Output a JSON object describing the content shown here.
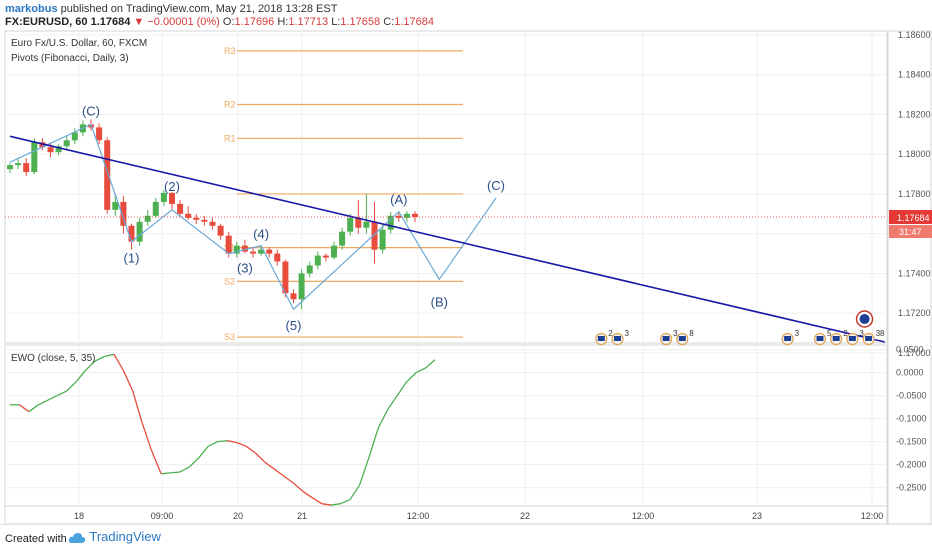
{
  "header": {
    "author": "markobus",
    "published_text": "published on TradingView.com, May 21, 2018 13:28 EST",
    "symbol_line": "FX:EURUSD, 60",
    "last_price": "1.17684",
    "change": "−0.00001 (0%)",
    "open_label": "O:",
    "open_value": "1.17696",
    "high_label": "H:",
    "high_value": "1.17713",
    "low_label": "L:",
    "low_value": "1.17658",
    "close_label": "C:",
    "close_value": "1.17684"
  },
  "footer": {
    "created_with": "Created with",
    "brand": "TradingView"
  },
  "colors": {
    "up": "#4caf50",
    "down": "#e74c3c",
    "pivot": "#f0a860",
    "trend": "#1a1aa8",
    "wave": "#6aa9d8",
    "ewo_up": "#4caf50",
    "ewo_down": "#e74c3c",
    "price_marker": "#e53935"
  },
  "chart_data": [
    {
      "type": "candlestick",
      "title": "Euro Fx/U.S. Dollar, 60, FXCM",
      "indicator_label": "Pivots (Fibonacci, Daily, 3)",
      "ylim": [
        1.1705,
        1.1862
      ],
      "y_ticks": [
        "1.18600",
        "1.18400",
        "1.18200",
        "1.18000",
        "1.17800",
        "1.17600",
        "1.17400",
        "1.17200",
        "1.17000"
      ],
      "x_ticks": [
        "18",
        "09:00",
        "20",
        "21",
        "12:00",
        "22",
        "12:00",
        "23",
        "12:00"
      ],
      "candles": [
        {
          "o": 1.17925,
          "h": 1.17955,
          "l": 1.17905,
          "c": 1.17945
        },
        {
          "o": 1.17945,
          "h": 1.17975,
          "l": 1.17925,
          "c": 1.17955
        },
        {
          "o": 1.17955,
          "h": 1.1798,
          "l": 1.1789,
          "c": 1.1791
        },
        {
          "o": 1.1791,
          "h": 1.1808,
          "l": 1.179,
          "c": 1.1806
        },
        {
          "o": 1.1806,
          "h": 1.1808,
          "l": 1.1802,
          "c": 1.18035
        },
        {
          "o": 1.18035,
          "h": 1.1806,
          "l": 1.17985,
          "c": 1.1801
        },
        {
          "o": 1.1801,
          "h": 1.1805,
          "l": 1.17995,
          "c": 1.1804
        },
        {
          "o": 1.1804,
          "h": 1.1809,
          "l": 1.1802,
          "c": 1.1807
        },
        {
          "o": 1.1807,
          "h": 1.1813,
          "l": 1.1805,
          "c": 1.1811
        },
        {
          "o": 1.1811,
          "h": 1.1817,
          "l": 1.1809,
          "c": 1.1815
        },
        {
          "o": 1.1815,
          "h": 1.18175,
          "l": 1.1812,
          "c": 1.18135
        },
        {
          "o": 1.18135,
          "h": 1.18155,
          "l": 1.1805,
          "c": 1.1807
        },
        {
          "o": 1.1807,
          "h": 1.18085,
          "l": 1.177,
          "c": 1.1772
        },
        {
          "o": 1.1772,
          "h": 1.178,
          "l": 1.1769,
          "c": 1.1776
        },
        {
          "o": 1.1776,
          "h": 1.1779,
          "l": 1.176,
          "c": 1.1764
        },
        {
          "o": 1.1764,
          "h": 1.1765,
          "l": 1.1752,
          "c": 1.1756
        },
        {
          "o": 1.1756,
          "h": 1.1768,
          "l": 1.1754,
          "c": 1.1766
        },
        {
          "o": 1.1766,
          "h": 1.1772,
          "l": 1.1764,
          "c": 1.1769
        },
        {
          "o": 1.1769,
          "h": 1.1778,
          "l": 1.1768,
          "c": 1.1776
        },
        {
          "o": 1.1776,
          "h": 1.1782,
          "l": 1.1774,
          "c": 1.17805
        },
        {
          "o": 1.17805,
          "h": 1.1781,
          "l": 1.1772,
          "c": 1.1775
        },
        {
          "o": 1.1775,
          "h": 1.1777,
          "l": 1.1769,
          "c": 1.177
        },
        {
          "o": 1.177,
          "h": 1.1774,
          "l": 1.1767,
          "c": 1.1768
        },
        {
          "o": 1.1768,
          "h": 1.177,
          "l": 1.1765,
          "c": 1.1767
        },
        {
          "o": 1.1767,
          "h": 1.1769,
          "l": 1.1764,
          "c": 1.1766
        },
        {
          "o": 1.1766,
          "h": 1.1768,
          "l": 1.1762,
          "c": 1.1764
        },
        {
          "o": 1.1764,
          "h": 1.1765,
          "l": 1.1757,
          "c": 1.1759
        },
        {
          "o": 1.1759,
          "h": 1.1761,
          "l": 1.1748,
          "c": 1.175
        },
        {
          "o": 1.175,
          "h": 1.1756,
          "l": 1.1748,
          "c": 1.1754
        },
        {
          "o": 1.1754,
          "h": 1.1757,
          "l": 1.175,
          "c": 1.1751
        },
        {
          "o": 1.1751,
          "h": 1.1753,
          "l": 1.1748,
          "c": 1.175
        },
        {
          "o": 1.175,
          "h": 1.1754,
          "l": 1.1749,
          "c": 1.1752
        },
        {
          "o": 1.1752,
          "h": 1.1753,
          "l": 1.1748,
          "c": 1.175
        },
        {
          "o": 1.175,
          "h": 1.1752,
          "l": 1.1744,
          "c": 1.1746
        },
        {
          "o": 1.1746,
          "h": 1.1747,
          "l": 1.1728,
          "c": 1.173
        },
        {
          "o": 1.173,
          "h": 1.1732,
          "l": 1.1725,
          "c": 1.1727
        },
        {
          "o": 1.1727,
          "h": 1.1742,
          "l": 1.1722,
          "c": 1.174
        },
        {
          "o": 1.174,
          "h": 1.1746,
          "l": 1.1738,
          "c": 1.1744
        },
        {
          "o": 1.1744,
          "h": 1.1751,
          "l": 1.1742,
          "c": 1.1749
        },
        {
          "o": 1.1749,
          "h": 1.175,
          "l": 1.1746,
          "c": 1.1748
        },
        {
          "o": 1.1748,
          "h": 1.1756,
          "l": 1.1747,
          "c": 1.1754
        },
        {
          "o": 1.1754,
          "h": 1.1763,
          "l": 1.1752,
          "c": 1.1761
        },
        {
          "o": 1.1761,
          "h": 1.177,
          "l": 1.1759,
          "c": 1.1768
        },
        {
          "o": 1.1768,
          "h": 1.1777,
          "l": 1.176,
          "c": 1.1763
        },
        {
          "o": 1.1763,
          "h": 1.178,
          "l": 1.176,
          "c": 1.1766
        },
        {
          "o": 1.1766,
          "h": 1.1776,
          "l": 1.1745,
          "c": 1.1752
        },
        {
          "o": 1.1752,
          "h": 1.1765,
          "l": 1.175,
          "c": 1.1762
        },
        {
          "o": 1.1762,
          "h": 1.1771,
          "l": 1.176,
          "c": 1.1769
        },
        {
          "o": 1.1769,
          "h": 1.1771,
          "l": 1.1766,
          "c": 1.1768
        },
        {
          "o": 1.1768,
          "h": 1.17713,
          "l": 1.17658,
          "c": 1.177
        },
        {
          "o": 1.177,
          "h": 1.17713,
          "l": 1.17658,
          "c": 1.17684
        }
      ],
      "pivots": [
        {
          "label": "R3",
          "value": 1.1852
        },
        {
          "label": "R2",
          "value": 1.1825
        },
        {
          "label": "R1",
          "value": 1.1808
        },
        {
          "label": "",
          "value": 1.178
        },
        {
          "label": "S1",
          "value": 1.1753
        },
        {
          "label": "S2",
          "value": 1.1736
        },
        {
          "label": "S3",
          "value": 1.1708
        }
      ],
      "wave_labels": [
        {
          "text": "(C)",
          "bar": 10,
          "price": 1.18215
        },
        {
          "text": "(1)",
          "bar": 15,
          "price": 1.17475
        },
        {
          "text": "(2)",
          "bar": 20,
          "price": 1.17835
        },
        {
          "text": "(3)",
          "bar": 29,
          "price": 1.17425
        },
        {
          "text": "(4)",
          "bar": 31,
          "price": 1.17595
        },
        {
          "text": "(5)",
          "bar": 35,
          "price": 1.17135
        },
        {
          "text": "(A)",
          "bar": 48,
          "price": 1.1777
        },
        {
          "text": "(B)",
          "bar": 53,
          "price": 1.17255
        },
        {
          "text": "(C)",
          "bar": 60,
          "price": 1.1784
        }
      ],
      "wave_path": [
        {
          "bar": 0,
          "price": 1.1796
        },
        {
          "bar": 10,
          "price": 1.1815
        },
        {
          "bar": 15,
          "price": 1.1756
        },
        {
          "bar": 20,
          "price": 1.1772
        },
        {
          "bar": 27,
          "price": 1.175
        },
        {
          "bar": 31,
          "price": 1.1754
        },
        {
          "bar": 35,
          "price": 1.1722
        },
        {
          "bar": 48,
          "price": 1.1771
        },
        {
          "bar": 53,
          "price": 1.1737
        },
        {
          "bar": 60,
          "price": 1.1778
        }
      ],
      "trendline": [
        {
          "bar": 0,
          "price": 1.1809
        },
        {
          "bar": 108,
          "price": 1.17055
        }
      ],
      "current_price": "1.17684",
      "countdown": "31:47",
      "event_markers": [
        {
          "bar": 73,
          "count": "2"
        },
        {
          "bar": 75,
          "count": "3"
        },
        {
          "bar": 81,
          "count": "3"
        },
        {
          "bar": 83,
          "count": "8"
        },
        {
          "bar": 96,
          "count": "3"
        },
        {
          "bar": 100,
          "count": "5"
        },
        {
          "bar": 102,
          "count": "2"
        },
        {
          "bar": 104,
          "count": "3"
        },
        {
          "bar": 106,
          "count": "38"
        }
      ]
    },
    {
      "type": "line",
      "title": "EWO (close, 5, 35)",
      "ylim": [
        -0.29,
        0.06
      ],
      "y_ticks": [
        "0.0500",
        "0.0000",
        "-0.0500",
        "-0.1000",
        "-0.1500",
        "-0.2000",
        "-0.2500"
      ],
      "values": [
        -0.07,
        -0.07,
        -0.085,
        -0.07,
        -0.06,
        -0.05,
        -0.04,
        -0.02,
        0.005,
        0.025,
        0.035,
        0.04,
        0.005,
        -0.04,
        -0.11,
        -0.17,
        -0.22,
        -0.218,
        -0.216,
        -0.205,
        -0.185,
        -0.16,
        -0.15,
        -0.148,
        -0.152,
        -0.16,
        -0.175,
        -0.195,
        -0.21,
        -0.225,
        -0.24,
        -0.258,
        -0.272,
        -0.285,
        -0.288,
        -0.285,
        -0.276,
        -0.245,
        -0.185,
        -0.12,
        -0.08,
        -0.05,
        -0.02,
        0.0,
        0.01,
        0.028
      ]
    }
  ]
}
